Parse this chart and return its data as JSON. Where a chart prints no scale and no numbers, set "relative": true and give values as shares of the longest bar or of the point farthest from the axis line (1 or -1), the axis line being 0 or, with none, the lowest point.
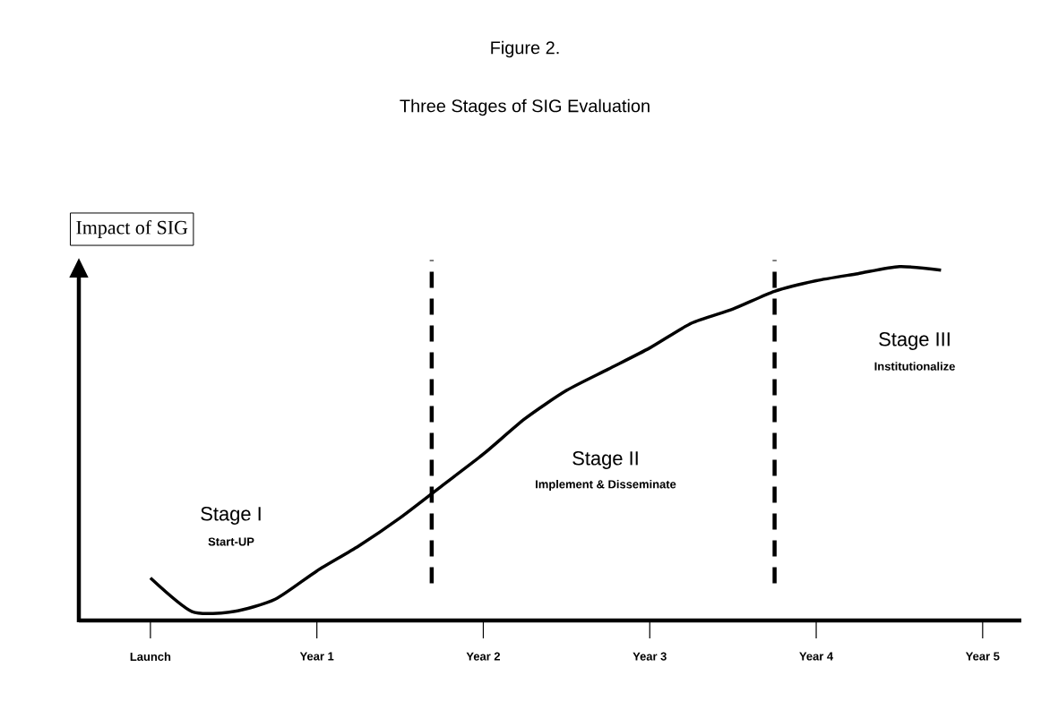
{
  "chart_data": {
    "type": "line",
    "title": "Figure 2.",
    "subtitle": "Three Stages of SIG Evaluation",
    "ylabel": "Impact of SIG",
    "relative": true,
    "categories": [
      "Launch",
      null,
      null,
      null,
      "Year 1",
      null,
      null,
      null,
      "Year 2",
      null,
      null,
      null,
      "Year 3",
      null,
      null,
      null,
      "Year 4",
      null,
      null,
      null,
      "Year 5"
    ],
    "series": [
      {
        "color": "#000000",
        "values": [
          0.12,
          0.025,
          0.025,
          0.06,
          0.14,
          0.21,
          0.29,
          0.38,
          0.47,
          0.57,
          0.65,
          0.71,
          0.77,
          0.84,
          0.88,
          0.93,
          0.96,
          0.98,
          1,
          0.99,
          null
        ]
      }
    ],
    "annotations": [
      "Stage I",
      "Start-UP",
      "Stage II",
      "Implement & Disseminate",
      "Stage III",
      "Institutionalize"
    ],
    "marker": "none",
    "line_style": "solid"
  }
}
